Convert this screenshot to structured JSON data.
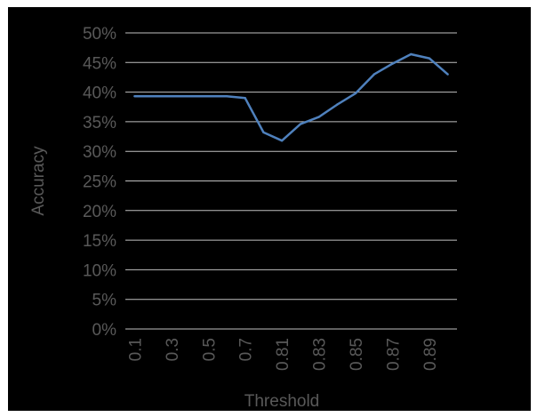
{
  "chart_data": {
    "type": "line",
    "xlabel": "Threshold",
    "ylabel": "Accuracy",
    "y_tick_labels": [
      "0%",
      "5%",
      "10%",
      "15%",
      "20%",
      "25%",
      "30%",
      "35%",
      "40%",
      "45%",
      "50%"
    ],
    "ylim": [
      0,
      50
    ],
    "grid": true,
    "legend": "none",
    "categories": [
      "0.1",
      "0.2",
      "0.3",
      "0.4",
      "0.5",
      "0.6",
      "0.7",
      "0.8",
      "0.81",
      "0.82",
      "0.83",
      "0.84",
      "0.85",
      "0.86",
      "0.87",
      "0.88",
      "0.89",
      "0.9"
    ],
    "shown_tick_labels": [
      "0.1",
      "0.3",
      "0.5",
      "0.7",
      "0.81",
      "0.83",
      "0.85",
      "0.87",
      "0.89"
    ],
    "series": [
      {
        "values": [
          39.3,
          39.3,
          39.3,
          39.3,
          39.3,
          39.3,
          39.0,
          33.2,
          31.8,
          34.6,
          35.8,
          37.9,
          39.8,
          43.0,
          44.8,
          46.4,
          45.7,
          43.0
        ]
      }
    ],
    "colors": {
      "background": "#000000",
      "line": "#4f81bd",
      "grid": "#bfbfbf",
      "text": "#595959"
    }
  }
}
